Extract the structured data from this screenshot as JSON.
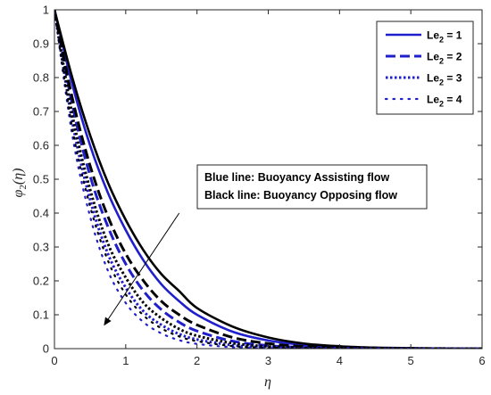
{
  "chart_data": {
    "type": "line",
    "xlabel": "η",
    "ylabel": "φ2(η)",
    "xlim": [
      0,
      6
    ],
    "ylim": [
      0,
      1
    ],
    "xticks": [
      "0",
      "1",
      "2",
      "3",
      "4",
      "5",
      "6"
    ],
    "yticks": [
      "0",
      "0.1",
      "0.2",
      "0.3",
      "0.4",
      "0.5",
      "0.6",
      "0.7",
      "0.8",
      "0.9",
      "1"
    ],
    "grid": false,
    "legend_position": "top-right",
    "legend": [
      {
        "label": "Le",
        "sub": "2",
        "value": " = 1",
        "style": "solid"
      },
      {
        "label": "Le",
        "sub": "2",
        "value": " = 2",
        "style": "dashed"
      },
      {
        "label": "Le",
        "sub": "2",
        "value": " = 3",
        "style": "dotted"
      },
      {
        "label": "Le",
        "sub": "2",
        "value": " = 4",
        "style": "sparse-dotted"
      }
    ],
    "annotation": {
      "line1": "Blue line: Buoyancy Assisting flow",
      "line2": "Black line: Buoyancy Opposing flow"
    },
    "arrow": {
      "from": [
        1.75,
        0.4
      ],
      "to": [
        0.7,
        0.07
      ]
    },
    "colors": {
      "assisting": "#1f1fcc",
      "opposing": "#000000"
    },
    "series": [
      {
        "name": "Le2 = 1",
        "group": "assisting",
        "style": "solid",
        "x": [
          0,
          0.25,
          0.5,
          0.75,
          1,
          1.25,
          1.5,
          1.75,
          2,
          2.5,
          3,
          3.5,
          4,
          4.5,
          5,
          5.5,
          6
        ],
        "y": [
          1,
          0.78,
          0.6,
          0.46,
          0.35,
          0.26,
          0.19,
          0.14,
          0.1,
          0.05,
          0.024,
          0.011,
          0.005,
          0.002,
          0.001,
          0.0003,
          0
        ]
      },
      {
        "name": "Le2 = 1",
        "group": "opposing",
        "style": "solid",
        "x": [
          0,
          0.25,
          0.5,
          0.75,
          1,
          1.25,
          1.5,
          1.75,
          2,
          2.5,
          3,
          3.5,
          4,
          4.5,
          5,
          5.5,
          6
        ],
        "y": [
          1,
          0.8,
          0.63,
          0.49,
          0.38,
          0.29,
          0.22,
          0.17,
          0.12,
          0.065,
          0.033,
          0.015,
          0.007,
          0.003,
          0.0015,
          0.0005,
          0
        ]
      },
      {
        "name": "Le2 = 2",
        "group": "assisting",
        "style": "dashed",
        "x": [
          0,
          0.25,
          0.5,
          0.75,
          1,
          1.25,
          1.5,
          1.75,
          2,
          2.5,
          3,
          3.5,
          4,
          4.5,
          5,
          5.5,
          6
        ],
        "y": [
          1,
          0.72,
          0.51,
          0.36,
          0.25,
          0.17,
          0.115,
          0.078,
          0.052,
          0.022,
          0.009,
          0.0035,
          0.0013,
          0.0005,
          0.0002,
          0.0001,
          0
        ]
      },
      {
        "name": "Le2 = 2",
        "group": "opposing",
        "style": "dashed",
        "x": [
          0,
          0.25,
          0.5,
          0.75,
          1,
          1.25,
          1.5,
          1.75,
          2,
          2.5,
          3,
          3.5,
          4,
          4.5,
          5,
          5.5,
          6
        ],
        "y": [
          1,
          0.74,
          0.54,
          0.39,
          0.28,
          0.2,
          0.14,
          0.1,
          0.07,
          0.033,
          0.015,
          0.0065,
          0.0028,
          0.0012,
          0.0005,
          0.0002,
          0
        ]
      },
      {
        "name": "Le2 = 3",
        "group": "assisting",
        "style": "dotted",
        "x": [
          0,
          0.25,
          0.5,
          0.75,
          1,
          1.25,
          1.5,
          1.75,
          2,
          2.5,
          3,
          3.5,
          4,
          4.5,
          5,
          5.5,
          6
        ],
        "y": [
          1,
          0.67,
          0.44,
          0.28,
          0.18,
          0.11,
          0.07,
          0.043,
          0.027,
          0.01,
          0.0035,
          0.0012,
          0.0004,
          0.0001,
          0,
          0,
          0
        ]
      },
      {
        "name": "Le2 = 3",
        "group": "opposing",
        "style": "dotted",
        "x": [
          0,
          0.25,
          0.5,
          0.75,
          1,
          1.25,
          1.5,
          1.75,
          2,
          2.5,
          3,
          3.5,
          4,
          4.5,
          5,
          5.5,
          6
        ],
        "y": [
          1,
          0.69,
          0.47,
          0.31,
          0.21,
          0.135,
          0.09,
          0.058,
          0.038,
          0.016,
          0.0065,
          0.0025,
          0.001,
          0.0004,
          0.0001,
          0,
          0
        ]
      },
      {
        "name": "Le2 = 4",
        "group": "assisting",
        "style": "sparse-dotted",
        "x": [
          0,
          0.25,
          0.5,
          0.75,
          1,
          1.25,
          1.5,
          1.75,
          2,
          2.5,
          3,
          3.5,
          4,
          4.5,
          5,
          5.5,
          6
        ],
        "y": [
          1,
          0.63,
          0.39,
          0.23,
          0.135,
          0.078,
          0.045,
          0.025,
          0.014,
          0.004,
          0.0012,
          0.0003,
          0.0001,
          0,
          0,
          0,
          0
        ]
      },
      {
        "name": "Le2 = 4",
        "group": "opposing",
        "style": "sparse-dotted",
        "x": [
          0,
          0.25,
          0.5,
          0.75,
          1,
          1.25,
          1.5,
          1.75,
          2,
          2.5,
          3,
          3.5,
          4,
          4.5,
          5,
          5.5,
          6
        ],
        "y": [
          1,
          0.65,
          0.42,
          0.26,
          0.16,
          0.098,
          0.06,
          0.036,
          0.022,
          0.0075,
          0.0025,
          0.0008,
          0.0003,
          0.0001,
          0,
          0,
          0
        ]
      }
    ]
  }
}
